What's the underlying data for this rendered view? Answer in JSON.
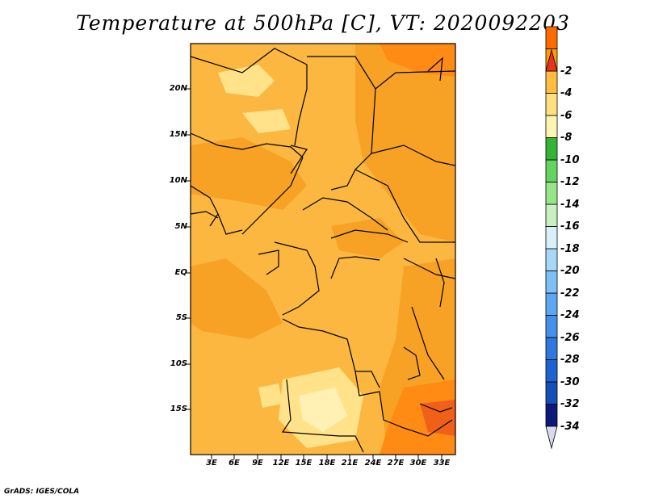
{
  "title": "Temperature at 500hPa [C], VT: 2020092203",
  "credit": "GrADS: IGES/COLA",
  "map": {
    "y_axis_labels": [
      "20N",
      "15N",
      "10N",
      "5N",
      "EQ",
      "5S",
      "10S",
      "15S"
    ],
    "x_axis_labels": [
      "3E",
      "6E",
      "9E",
      "12E",
      "15E",
      "18E",
      "21E",
      "24E",
      "27E",
      "30E",
      "33E"
    ]
  },
  "colorbar": {
    "labels": [
      "-2",
      "-4",
      "-6",
      "-8",
      "-10",
      "-12",
      "-14",
      "-16",
      "-18",
      "-20",
      "-22",
      "-24",
      "-26",
      "-28",
      "-30",
      "-32",
      "-34"
    ],
    "colors": [
      "#d8d8ee",
      "#0c1a78",
      "#1550b8",
      "#1e64d0",
      "#2e78e0",
      "#4690ec",
      "#5ca8f0",
      "#7ec0f6",
      "#a8d8f8",
      "#d8f0fa",
      "#c8f0c0",
      "#96e688",
      "#64d460",
      "#34b434",
      "#fff4b0",
      "#ffe080",
      "#ffbe40",
      "#ff9c00",
      "#ff6a00",
      "#e8321e"
    ]
  }
}
